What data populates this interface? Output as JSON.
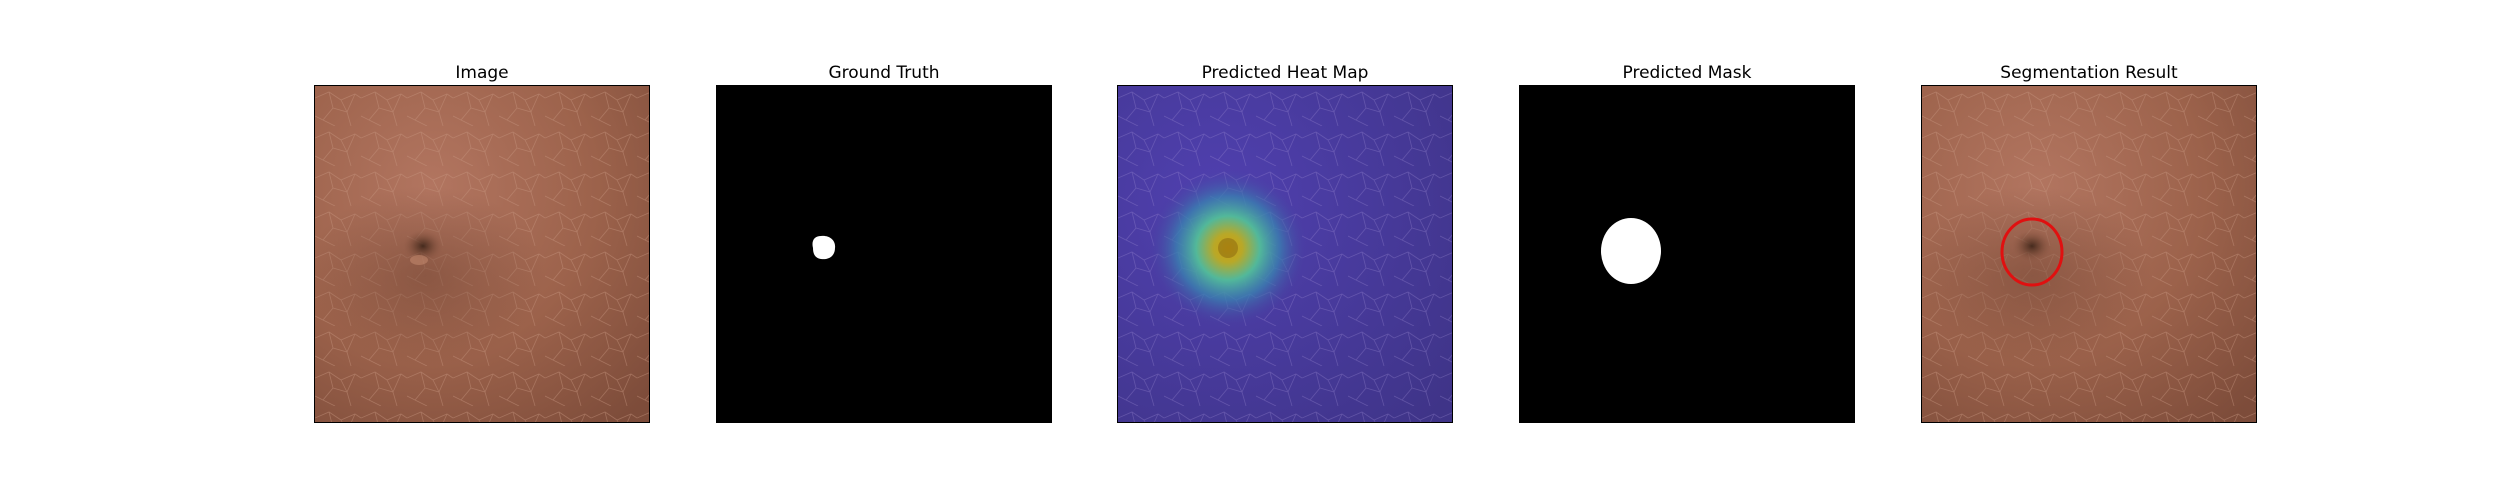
{
  "figure": {
    "panels": [
      {
        "title": "Image",
        "kind": "skin-photo"
      },
      {
        "title": "Ground Truth",
        "kind": "binary-mask-small"
      },
      {
        "title": "Predicted Heat Map",
        "kind": "heatmap-overlay"
      },
      {
        "title": "Predicted Mask",
        "kind": "binary-mask-large"
      },
      {
        "title": "Segmentation Result",
        "kind": "skin-photo-with-contour"
      }
    ],
    "colors": {
      "skin": "#a2674e",
      "skin_dark": "#6e4330",
      "mask_fg": "#ffffff",
      "mask_bg": "#000000",
      "heat_bg": "#4a3aa0",
      "heat_core": "#c9a020",
      "heat_mid": "#3fb3a0",
      "contour": "#e01010"
    }
  }
}
